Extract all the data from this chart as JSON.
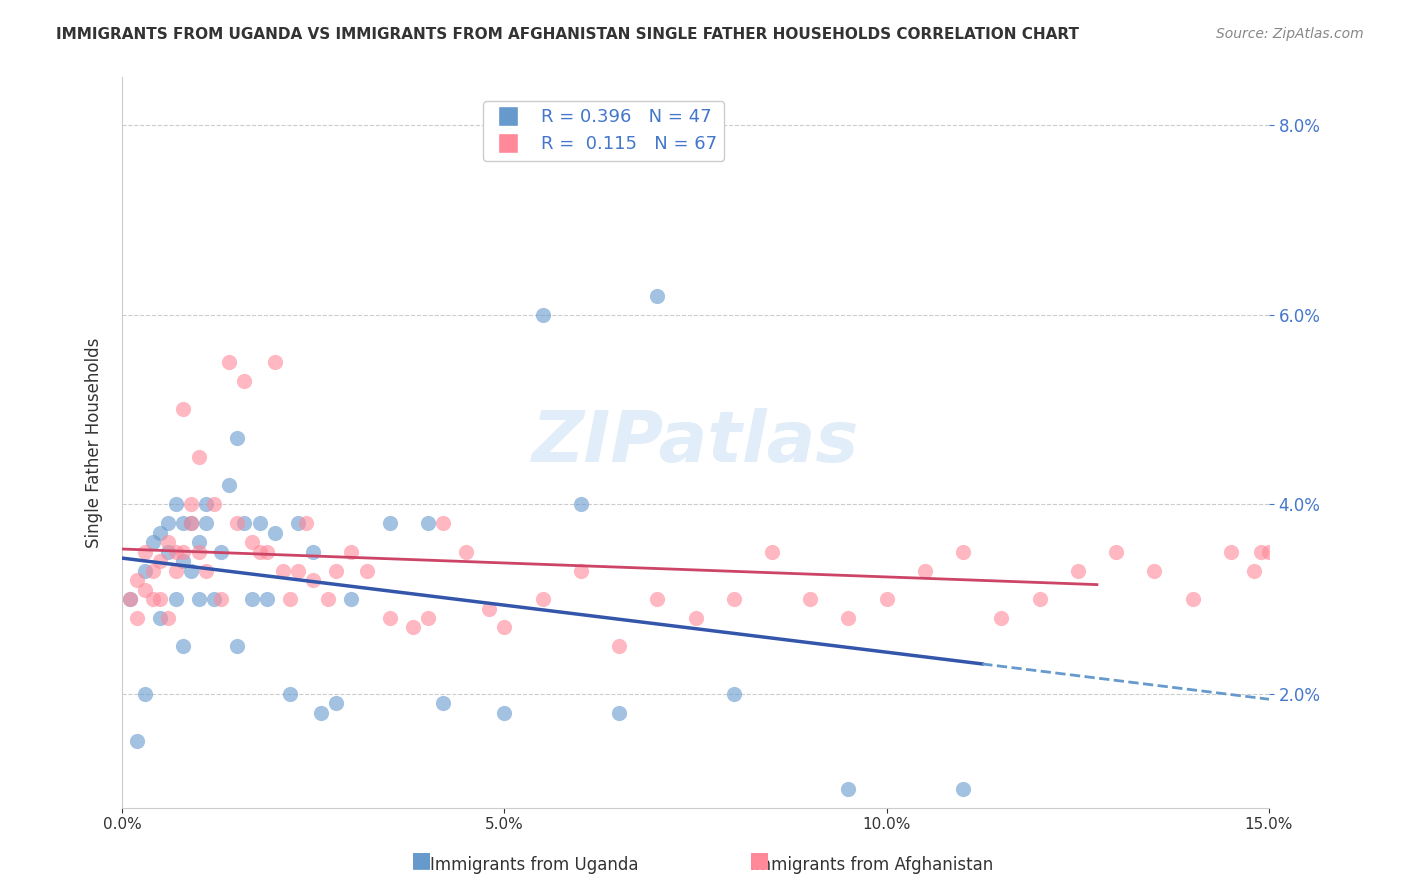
{
  "title": "IMMIGRANTS FROM UGANDA VS IMMIGRANTS FROM AFGHANISTAN SINGLE FATHER HOUSEHOLDS CORRELATION CHART",
  "source": "Source: ZipAtlas.com",
  "ylabel": "Single Father Households",
  "legend_label1": "Immigrants from Uganda",
  "legend_label2": "Immigrants from Afghanistan",
  "R1": 0.396,
  "N1": 47,
  "R2": 0.115,
  "N2": 67,
  "color1": "#6699CC",
  "color2": "#FF8899",
  "trend_color1": "#3355AA",
  "trend_color2": "#CC4466",
  "xmin": 0.0,
  "xmax": 0.15,
  "ymin": 0.008,
  "ymax": 0.085,
  "background_color": "#FFFFFF",
  "watermark": "ZIPatlas",
  "y_ticks_right": [
    0.02,
    0.04,
    0.06,
    0.08
  ],
  "uganda_x": [
    0.001,
    0.002,
    0.003,
    0.003,
    0.004,
    0.005,
    0.005,
    0.006,
    0.006,
    0.007,
    0.007,
    0.008,
    0.008,
    0.008,
    0.009,
    0.009,
    0.01,
    0.01,
    0.011,
    0.011,
    0.012,
    0.013,
    0.014,
    0.015,
    0.015,
    0.016,
    0.017,
    0.018,
    0.019,
    0.02,
    0.022,
    0.023,
    0.025,
    0.026,
    0.028,
    0.03,
    0.035,
    0.04,
    0.042,
    0.05,
    0.055,
    0.06,
    0.065,
    0.07,
    0.08,
    0.095,
    0.11
  ],
  "uganda_y": [
    0.03,
    0.015,
    0.033,
    0.02,
    0.036,
    0.037,
    0.028,
    0.035,
    0.038,
    0.04,
    0.03,
    0.034,
    0.038,
    0.025,
    0.038,
    0.033,
    0.036,
    0.03,
    0.038,
    0.04,
    0.03,
    0.035,
    0.042,
    0.025,
    0.047,
    0.038,
    0.03,
    0.038,
    0.03,
    0.037,
    0.02,
    0.038,
    0.035,
    0.018,
    0.019,
    0.03,
    0.038,
    0.038,
    0.019,
    0.018,
    0.06,
    0.04,
    0.018,
    0.062,
    0.02,
    0.01,
    0.01
  ],
  "afghan_x": [
    0.001,
    0.002,
    0.002,
    0.003,
    0.003,
    0.004,
    0.004,
    0.005,
    0.005,
    0.006,
    0.006,
    0.007,
    0.007,
    0.008,
    0.008,
    0.009,
    0.009,
    0.01,
    0.01,
    0.011,
    0.012,
    0.013,
    0.014,
    0.015,
    0.016,
    0.017,
    0.018,
    0.019,
    0.02,
    0.021,
    0.022,
    0.023,
    0.024,
    0.025,
    0.027,
    0.028,
    0.03,
    0.032,
    0.035,
    0.038,
    0.04,
    0.042,
    0.045,
    0.048,
    0.05,
    0.055,
    0.06,
    0.065,
    0.07,
    0.075,
    0.08,
    0.085,
    0.09,
    0.095,
    0.1,
    0.105,
    0.11,
    0.115,
    0.12,
    0.125,
    0.13,
    0.135,
    0.14,
    0.145,
    0.148,
    0.149,
    0.15
  ],
  "afghan_y": [
    0.03,
    0.028,
    0.032,
    0.035,
    0.031,
    0.03,
    0.033,
    0.034,
    0.03,
    0.036,
    0.028,
    0.035,
    0.033,
    0.05,
    0.035,
    0.038,
    0.04,
    0.045,
    0.035,
    0.033,
    0.04,
    0.03,
    0.055,
    0.038,
    0.053,
    0.036,
    0.035,
    0.035,
    0.055,
    0.033,
    0.03,
    0.033,
    0.038,
    0.032,
    0.03,
    0.033,
    0.035,
    0.033,
    0.028,
    0.027,
    0.028,
    0.038,
    0.035,
    0.029,
    0.027,
    0.03,
    0.033,
    0.025,
    0.03,
    0.028,
    0.03,
    0.035,
    0.03,
    0.028,
    0.03,
    0.033,
    0.035,
    0.028,
    0.03,
    0.033,
    0.035,
    0.033,
    0.03,
    0.035,
    0.033,
    0.035,
    0.035
  ]
}
